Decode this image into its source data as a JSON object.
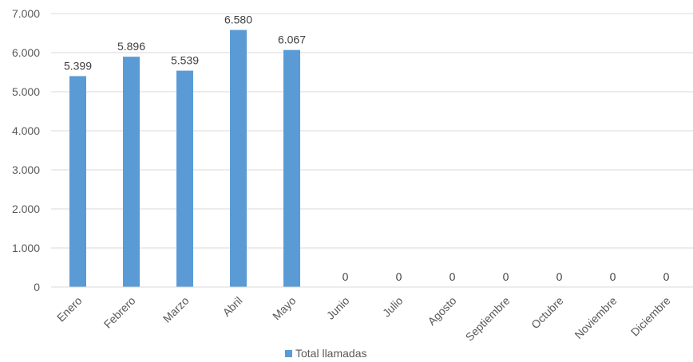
{
  "chart_data": {
    "type": "bar",
    "title": "",
    "xlabel": "",
    "ylabel": "",
    "categories": [
      "Enero",
      "Febrero",
      "Marzo",
      "Abril",
      "Mayo",
      "Junio",
      "Julio",
      "Agosto",
      "Septiembre",
      "Octubre",
      "Noviembre",
      "Diciembre"
    ],
    "series": [
      {
        "name": "Total llamadas",
        "color": "#5b9bd5",
        "values": [
          5399,
          5896,
          5539,
          6580,
          6067,
          0,
          0,
          0,
          0,
          0,
          0,
          0
        ],
        "value_labels": [
          "5.399",
          "5.896",
          "5.539",
          "6.580",
          "6.067",
          "0",
          "0",
          "0",
          "0",
          "0",
          "0",
          "0"
        ]
      }
    ],
    "ylim": [
      0,
      7000
    ],
    "yticks": [
      0,
      1000,
      2000,
      3000,
      4000,
      5000,
      6000,
      7000
    ],
    "ytick_labels": [
      "0",
      "1.000",
      "2.000",
      "3.000",
      "4.000",
      "5.000",
      "6.000",
      "7.000"
    ],
    "grid": true,
    "legend_position": "bottom"
  }
}
